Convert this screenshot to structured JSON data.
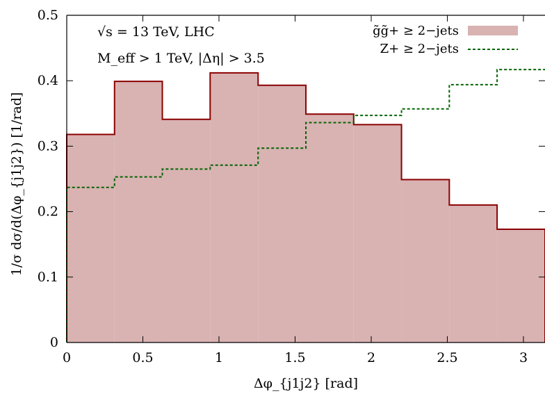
{
  "chart_data": {
    "type": "histogram",
    "xlabel": "Δφ_{j1j2} [rad]",
    "ylabel": "1/σ dσ/d(Δφ_{j1j2}) [1/rad]",
    "xlim": [
      0,
      3.1416
    ],
    "ylim": [
      0,
      0.5
    ],
    "xticks": [
      0,
      0.5,
      1,
      1.5,
      2,
      2.5,
      3
    ],
    "xtick_labels": [
      "0",
      "0.5",
      "1",
      "1.5",
      "2",
      "2.5",
      "3"
    ],
    "yticks": [
      0,
      0.1,
      0.2,
      0.3,
      0.4,
      0.5
    ],
    "ytick_labels": [
      "0",
      "0.1",
      "0.2",
      "0.3",
      "0.4",
      "0.5"
    ],
    "bin_edges": [
      0,
      0.314,
      0.628,
      0.942,
      1.257,
      1.571,
      1.885,
      2.199,
      2.513,
      2.827,
      3.1416
    ],
    "annotations": [
      "√s = 13 TeV, LHC",
      "M_eff > 1 TeV, |Δη| > 3.5"
    ],
    "legend_position": "top-right",
    "series": [
      {
        "name": "g̃g̃+ ≥ 2−jets",
        "style": "filled-step",
        "fill": "#d9b2b2",
        "stroke": "#8b0000",
        "values": [
          0.318,
          0.399,
          0.341,
          0.412,
          0.393,
          0.349,
          0.333,
          0.249,
          0.21,
          0.173
        ]
      },
      {
        "name": "Z+ ≥ 2−jets",
        "style": "dashed-step",
        "stroke": "#006400",
        "values": [
          0.237,
          0.253,
          0.265,
          0.271,
          0.297,
          0.336,
          0.347,
          0.357,
          0.394,
          0.417
        ]
      }
    ]
  }
}
